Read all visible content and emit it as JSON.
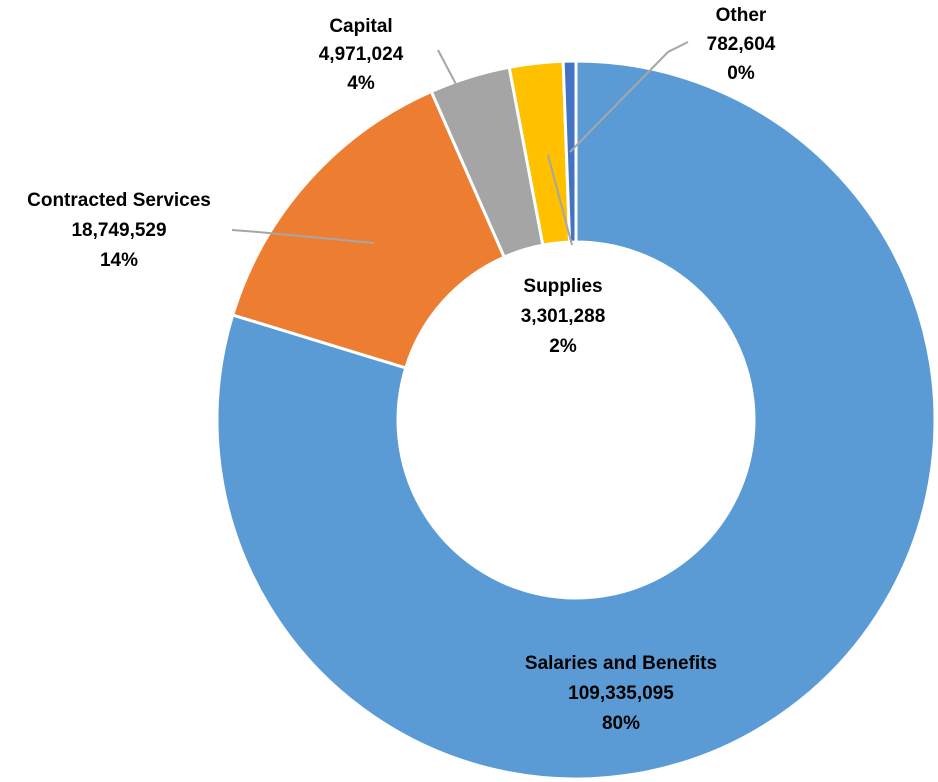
{
  "chart_data": {
    "type": "pie",
    "style": "donut",
    "slices": [
      {
        "label": "Salaries and Benefits",
        "value": 109335095,
        "value_text": "109,335,095",
        "percent_text": "80%",
        "color": "#5b9bd5"
      },
      {
        "label": "Contracted Services",
        "value": 18749529,
        "value_text": "18,749,529",
        "percent_text": "14%",
        "color": "#ed7d31"
      },
      {
        "label": "Capital",
        "value": 4971024,
        "value_text": "4,971,024",
        "percent_text": "4%",
        "color": "#a5a5a5"
      },
      {
        "label": "Supplies",
        "value": 3301288,
        "value_text": "3,301,288",
        "percent_text": "2%",
        "color": "#ffc000"
      },
      {
        "label": "Other",
        "value": 782604,
        "value_text": "782,604",
        "percent_text": "0%",
        "color": "#4472c4"
      }
    ]
  }
}
